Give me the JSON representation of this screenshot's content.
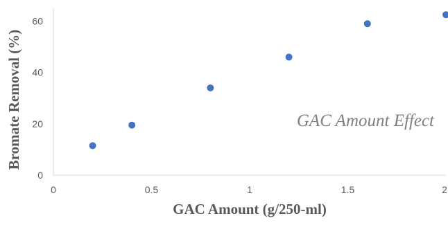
{
  "chart_data": {
    "type": "scatter",
    "title": "",
    "xlabel": "GAC Amount (g/250-ml)",
    "ylabel": "Bromate Removal (%)",
    "xlim": [
      0,
      2
    ],
    "ylim": [
      0,
      65
    ],
    "x_ticks": [
      "0",
      "0.5",
      "1",
      "1.5",
      "2"
    ],
    "y_ticks": [
      "0",
      "20",
      "40",
      "60"
    ],
    "grid": false,
    "annotation": "GAC Amount Effect",
    "marker_color": "#4472c4",
    "series": [
      {
        "x": [
          0.2,
          0.4,
          0.8,
          1.2,
          1.6,
          2.0
        ],
        "y": [
          11.5,
          19.5,
          34,
          46,
          59,
          62.5
        ]
      }
    ]
  }
}
